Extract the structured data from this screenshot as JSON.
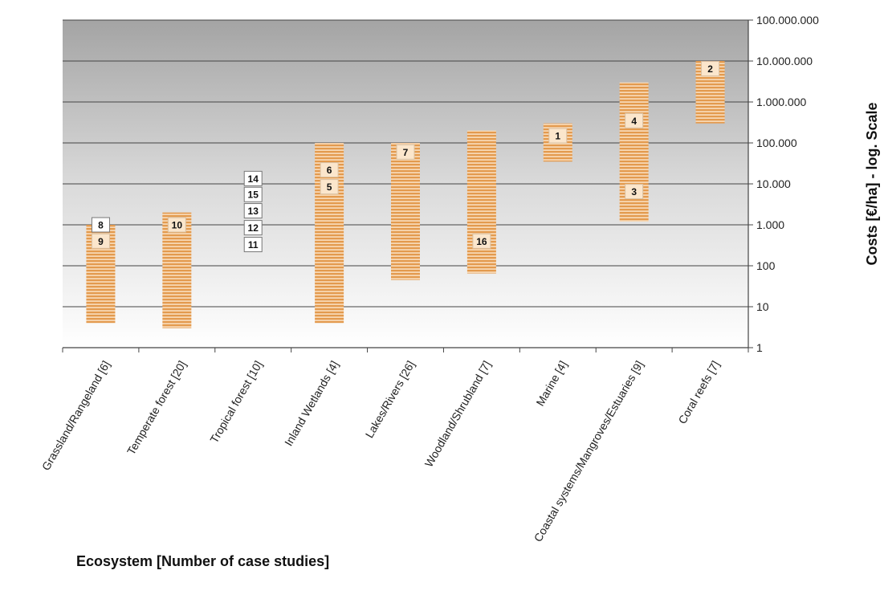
{
  "chart_data": {
    "type": "bar",
    "subtype": "floating-range",
    "x_axis_title": "Ecosystem [Number of case studies]",
    "y_axis_title": "Costs [€/ha] - log. Scale",
    "y_scale": "log",
    "ylim": [
      1,
      100000000
    ],
    "y_axis_position": "right",
    "grid": true,
    "y_ticks": [
      {
        "value": 1,
        "label": "1"
      },
      {
        "value": 10,
        "label": "10"
      },
      {
        "value": 100,
        "label": "100"
      },
      {
        "value": 1000,
        "label": "1.000"
      },
      {
        "value": 10000,
        "label": "10.000"
      },
      {
        "value": 100000,
        "label": "100.000"
      },
      {
        "value": 1000000,
        "label": "1.000.000"
      },
      {
        "value": 10000000,
        "label": "10.000.000"
      },
      {
        "value": 100000000,
        "label": "100.000.000"
      }
    ],
    "bar_color": "#e8a15a",
    "categories": [
      {
        "label": "Grassland/Rangeland [6]",
        "min": 4,
        "max": 1000,
        "bar": true,
        "markers": [
          {
            "id": "8",
            "value": 1000,
            "outlined": true
          },
          {
            "id": "9",
            "value": 400
          }
        ]
      },
      {
        "label": "Temperate forest [20]",
        "min": 3,
        "max": 2000,
        "bar": true,
        "markers": [
          {
            "id": "10",
            "value": 1000
          }
        ]
      },
      {
        "label": "Tropical forest [10]",
        "min": 150,
        "max": 20000,
        "bar": false,
        "markers": [
          {
            "id": "14",
            "value": 13500,
            "outlined": true
          },
          {
            "id": "15",
            "value": 5500,
            "outlined": true
          },
          {
            "id": "13",
            "value": 2200,
            "outlined": true
          },
          {
            "id": "12",
            "value": 850,
            "outlined": true
          },
          {
            "id": "11",
            "value": 330,
            "outlined": true
          }
        ]
      },
      {
        "label": "Inland Wetlands [4]",
        "min": 4,
        "max": 100000,
        "bar": true,
        "markers": [
          {
            "id": "6",
            "value": 22000
          },
          {
            "id": "5",
            "value": 8500
          }
        ]
      },
      {
        "label": "Lakes/Rivers [26]",
        "min": 45,
        "max": 100000,
        "bar": true,
        "markers": [
          {
            "id": "7",
            "value": 60000
          }
        ]
      },
      {
        "label": "Woodland/Shrubland [7]",
        "min": 65,
        "max": 200000,
        "bar": true,
        "markers": [
          {
            "id": "16",
            "value": 400
          }
        ]
      },
      {
        "label": "Marine [4]",
        "min": 35000,
        "max": 300000,
        "bar": true,
        "markers": [
          {
            "id": "1",
            "value": 150000
          }
        ]
      },
      {
        "label": "Coastal systems/Mangroves/Estuaries [9]",
        "min": 1200,
        "max": 3000000,
        "bar": true,
        "markers": [
          {
            "id": "4",
            "value": 350000
          },
          {
            "id": "3",
            "value": 6500
          }
        ]
      },
      {
        "label": "Coral reefs [7]",
        "min": 300000,
        "max": 10000000,
        "bar": true,
        "markers": [
          {
            "id": "2",
            "value": 6500000
          }
        ]
      }
    ]
  }
}
